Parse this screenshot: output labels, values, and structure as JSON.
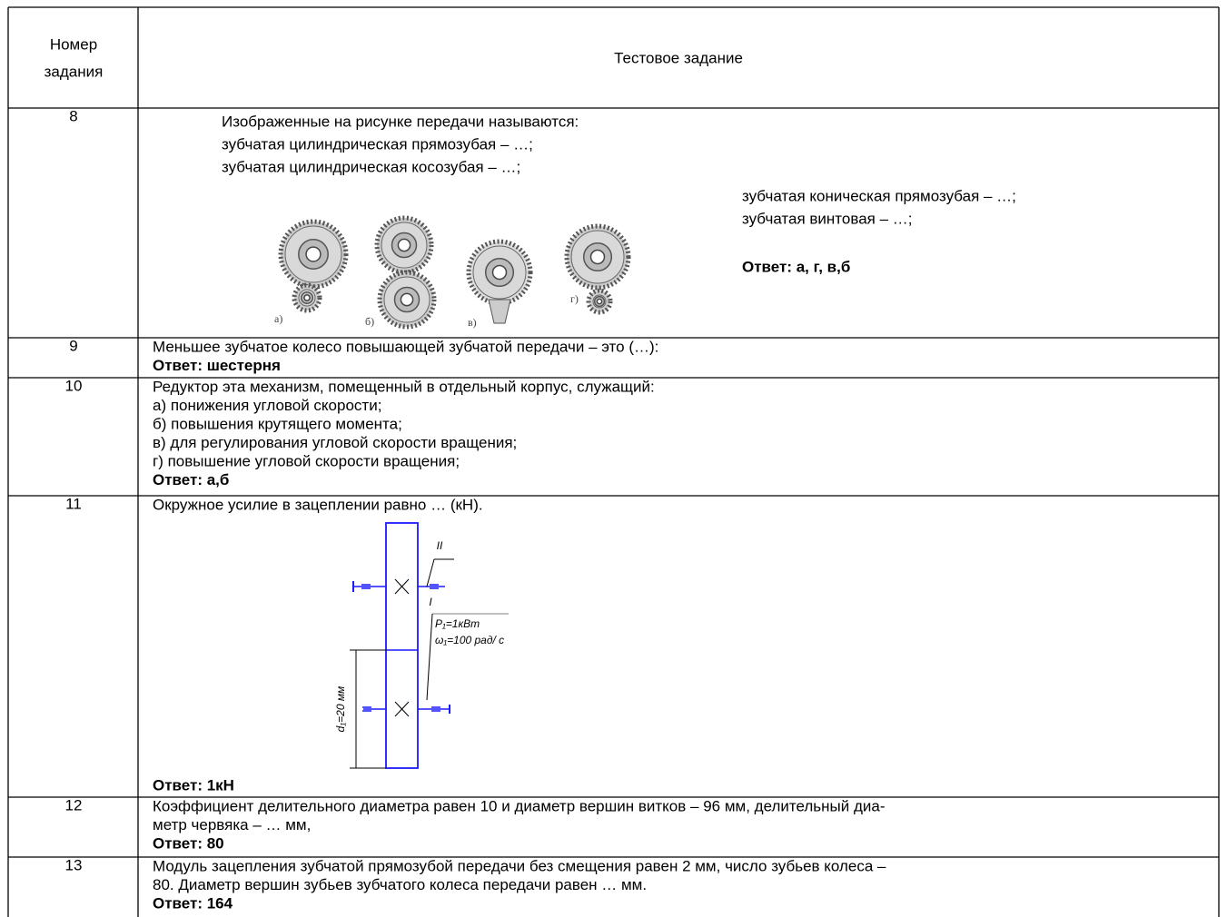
{
  "table": {
    "header": {
      "number": [
        "Номер",
        "задания"
      ],
      "task": "Тестовое задание"
    },
    "rows": [
      {
        "number": "8",
        "lines": [
          "Изображенные на рисунке передачи называются:",
          "зубчатая цилиндрическая прямозубая – …;",
          "зубчатая цилиндрическая косозубая – …;"
        ],
        "side_lines": [
          "зубчатая коническая прямозубая – …;",
          "зубчатая винтовая – …;"
        ],
        "figure_labels": [
          "а)",
          "б)",
          "в)",
          "г)"
        ],
        "answer": "Ответ: а, г, в,б"
      },
      {
        "number": "9",
        "lines": [
          "Меньшее зубчатое колесо повышающей зубчатой передачи – это (…):"
        ],
        "answer": "Ответ: шестерня"
      },
      {
        "number": "10",
        "lines": [
          "Редуктор эта механизм, помещенный в отдельный корпус, служащий:",
          "а) понижения угловой скорости;",
          "б) повышения крутящего момента;",
          "в) для регулирования угловой скорости вращения;",
          "г) повышение угловой скорости вращения;"
        ],
        "answer": "Ответ: а,б"
      },
      {
        "number": "11",
        "lines": [
          "Окружное усилие в зацеплении равно … (кН)."
        ],
        "figure_labels": [
          "II",
          "I",
          "P₁=1кВт",
          "ω₁=100 рад/ с",
          "d₁=20 мм"
        ],
        "answer": "Ответ: 1кН"
      },
      {
        "number": "12",
        "lines": [
          "Коэффициент делительного диаметра равен 10 и диаметр вершин витков – 96 мм, делительный диа-",
          "метр червяка – … мм,"
        ],
        "answer": "Ответ: 80"
      },
      {
        "number": "13",
        "lines": [
          "Модуль зацепления зубчатой прямозубой передачи без смещения равен 2 мм, число зубьев колеса –",
          "80. Диаметр вершин зубьев зубчатого колеса передачи равен … мм."
        ],
        "answer": "Ответ: 164"
      }
    ]
  }
}
